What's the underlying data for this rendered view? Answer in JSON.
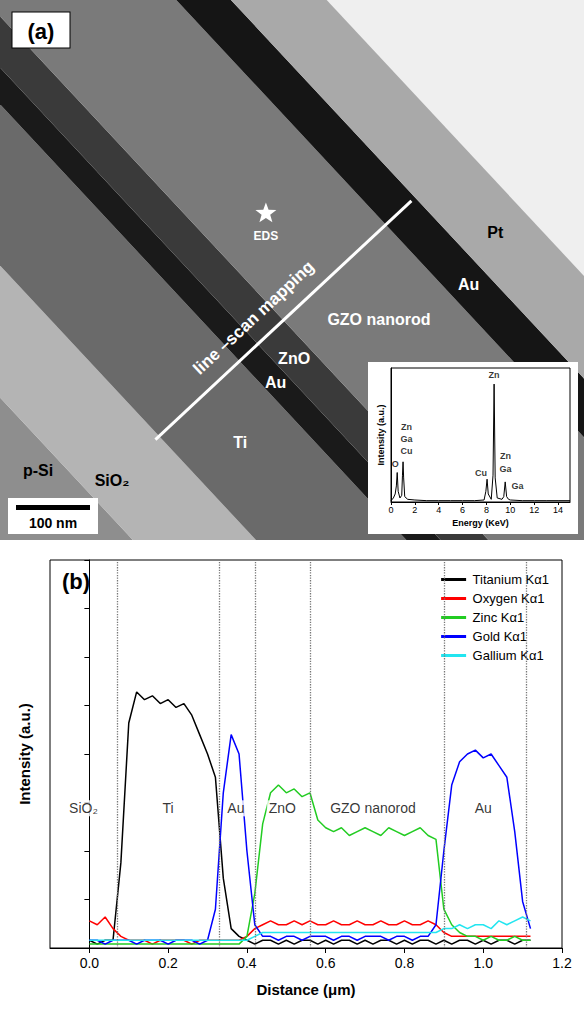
{
  "micrograph": {
    "panel": "(a)",
    "labels": [
      "p-Si",
      "SiO₂",
      "Ti",
      "Au",
      "ZnO",
      "GZO nanorod",
      "Au",
      "Pt"
    ],
    "line_scan": "line –scan mapping",
    "eds_point": "EDS",
    "scale_bar": "100 nm"
  },
  "chart_data": [
    {
      "type": "line",
      "x_label": "Energy (KeV)",
      "y_label": "Intensity (a.u.)",
      "x": [
        0,
        0.2,
        0.35,
        0.45,
        0.52,
        0.6,
        0.75,
        0.9,
        0.96,
        1.01,
        1.06,
        1.15,
        1.4,
        2,
        3,
        4,
        5,
        6,
        7,
        7.8,
        7.95,
        8.05,
        8.15,
        8.4,
        8.55,
        8.64,
        8.73,
        8.9,
        9.3,
        9.45,
        9.57,
        9.69,
        9.85,
        10,
        11,
        12,
        13,
        14,
        15
      ],
      "values": [
        1,
        3,
        6,
        12,
        22,
        8,
        3,
        5,
        20,
        30,
        18,
        4,
        2,
        1.5,
        1,
        1,
        1,
        1,
        1,
        1.5,
        8,
        17,
        6,
        2,
        20,
        88,
        18,
        3,
        2,
        4,
        15,
        4,
        2,
        1.5,
        1,
        1,
        1,
        1,
        1
      ],
      "color": "#000000",
      "xlim": [
        0,
        15
      ],
      "xticks": [
        0,
        2,
        4,
        6,
        8,
        10,
        12,
        14
      ],
      "ylim": [
        0,
        100
      ],
      "tick_labels": "x",
      "grid": false,
      "annotations": [
        {
          "text": "O",
          "x": 0.35,
          "y": 28
        },
        {
          "text": "Zn",
          "x": 1.3,
          "y": 56
        },
        {
          "text": "Ga",
          "x": 1.3,
          "y": 47
        },
        {
          "text": "Cu",
          "x": 1.3,
          "y": 38
        },
        {
          "text": "Zn",
          "x": 8.64,
          "y": 95
        },
        {
          "text": "Cu",
          "x": 7.55,
          "y": 22
        },
        {
          "text": "Zn",
          "x": 9.6,
          "y": 34
        },
        {
          "text": "Ga",
          "x": 9.6,
          "y": 25
        },
        {
          "text": "Ga",
          "x": 10.6,
          "y": 12
        }
      ]
    },
    {
      "type": "line",
      "panel": "(b)",
      "x_label": "Distance (μm)",
      "y_label": "Intensity (a.u.)",
      "x": [
        0,
        0.02,
        0.04,
        0.06,
        0.08,
        0.1,
        0.12,
        0.14,
        0.16,
        0.18,
        0.2,
        0.22,
        0.24,
        0.26,
        0.28,
        0.3,
        0.32,
        0.34,
        0.36,
        0.38,
        0.4,
        0.42,
        0.44,
        0.46,
        0.48,
        0.5,
        0.52,
        0.54,
        0.56,
        0.58,
        0.6,
        0.62,
        0.64,
        0.66,
        0.68,
        0.7,
        0.72,
        0.74,
        0.76,
        0.78,
        0.8,
        0.82,
        0.84,
        0.86,
        0.88,
        0.9,
        0.92,
        0.94,
        0.96,
        0.98,
        1.0,
        1.02,
        1.04,
        1.06,
        1.08,
        1.1,
        1.12
      ],
      "series": [
        {
          "name": "Titanium Kα1",
          "color": "#000000",
          "values": [
            2,
            1,
            2,
            2,
            22,
            58,
            66,
            64,
            65,
            63,
            64,
            62,
            63,
            60,
            55,
            50,
            44,
            18,
            5,
            3,
            2,
            1,
            2,
            2,
            1,
            2,
            1,
            2,
            2,
            1,
            2,
            1,
            2,
            2,
            1,
            2,
            1,
            2,
            2,
            1,
            2,
            1,
            2,
            2,
            1,
            2,
            1,
            2,
            2,
            1,
            2,
            1,
            2,
            2,
            1,
            2,
            2
          ]
        },
        {
          "name": "Oxygen Kα1",
          "color": "#ff0000",
          "values": [
            7,
            6,
            8,
            5,
            3,
            2,
            2,
            2,
            1,
            2,
            2,
            2,
            2,
            1,
            2,
            2,
            2,
            2,
            2,
            2,
            3,
            5,
            6,
            7,
            6,
            6,
            7,
            6,
            7,
            6,
            6,
            7,
            6,
            6,
            7,
            6,
            6,
            7,
            6,
            6,
            7,
            6,
            6,
            7,
            6,
            4,
            3,
            3,
            3,
            3,
            3,
            3,
            3,
            3,
            3,
            3,
            3
          ]
        },
        {
          "name": "Zinc Kα1",
          "color": "#22cc22",
          "values": [
            1,
            1,
            1,
            1,
            1,
            1,
            1,
            1,
            1,
            1,
            1,
            1,
            1,
            1,
            1,
            1,
            1,
            1,
            1,
            1,
            3,
            14,
            32,
            40,
            42,
            40,
            41,
            39,
            40,
            33,
            31,
            30,
            31,
            29,
            30,
            31,
            30,
            29,
            31,
            30,
            29,
            30,
            31,
            29,
            28,
            10,
            6,
            4,
            3,
            3,
            2,
            3,
            2,
            2,
            3,
            2,
            2
          ]
        },
        {
          "name": "Gold Kα1",
          "color": "#0000ff",
          "values": [
            2,
            2,
            1,
            2,
            2,
            2,
            1,
            2,
            2,
            2,
            1,
            2,
            2,
            2,
            1,
            2,
            10,
            40,
            55,
            50,
            25,
            6,
            3,
            3,
            2,
            3,
            3,
            2,
            3,
            3,
            3,
            2,
            3,
            3,
            2,
            3,
            3,
            3,
            2,
            3,
            3,
            2,
            3,
            3,
            6,
            25,
            42,
            48,
            50,
            51,
            49,
            50,
            47,
            44,
            30,
            12,
            5
          ]
        },
        {
          "name": "Gallium Kα1",
          "color": "#22e5f0",
          "values": [
            2,
            2,
            2,
            2,
            2,
            2,
            2,
            2,
            2,
            2,
            2,
            2,
            2,
            2,
            2,
            2,
            2,
            2,
            2,
            2,
            2,
            3,
            4,
            4,
            4,
            4,
            4,
            4,
            4,
            4,
            4,
            4,
            4,
            4,
            4,
            4,
            4,
            4,
            4,
            4,
            4,
            4,
            4,
            4,
            4,
            5,
            5,
            6,
            5,
            6,
            6,
            5,
            7,
            6,
            7,
            8,
            7
          ]
        }
      ],
      "xlim": [
        -0.1,
        1.2
      ],
      "xticks": [
        {
          "value": 0,
          "label": "0.0"
        },
        {
          "value": 0.2,
          "label": "0.2"
        },
        {
          "value": 0.4,
          "label": "0.4"
        },
        {
          "value": 0.6,
          "label": "0.6"
        },
        {
          "value": 0.8,
          "label": "0.8"
        },
        {
          "value": 1,
          "label": "1.0"
        },
        {
          "value": 1.2,
          "label": "1.2"
        }
      ],
      "ylim": [
        0,
        100
      ],
      "yticks": [
        0,
        12.5,
        25,
        37.5,
        50,
        62.5,
        75,
        87.5,
        100
      ],
      "tick_labels": "x",
      "grid": false,
      "legend": "upper right",
      "line_style": "solid",
      "boundaries": [
        0.07,
        0.325,
        0.42,
        0.56,
        0.895,
        1.11
      ],
      "regions": [
        {
          "text": "SiO₂",
          "x": -0.015,
          "y": 36
        },
        {
          "text": "Ti",
          "x": 0.2,
          "y": 36
        },
        {
          "text": "Au",
          "x": 0.372,
          "y": 36
        },
        {
          "text": "ZnO",
          "x": 0.49,
          "y": 36
        },
        {
          "text": "GZO nanorod",
          "x": 0.72,
          "y": 36
        },
        {
          "text": "Au",
          "x": 1.0,
          "y": 36
        }
      ]
    }
  ]
}
